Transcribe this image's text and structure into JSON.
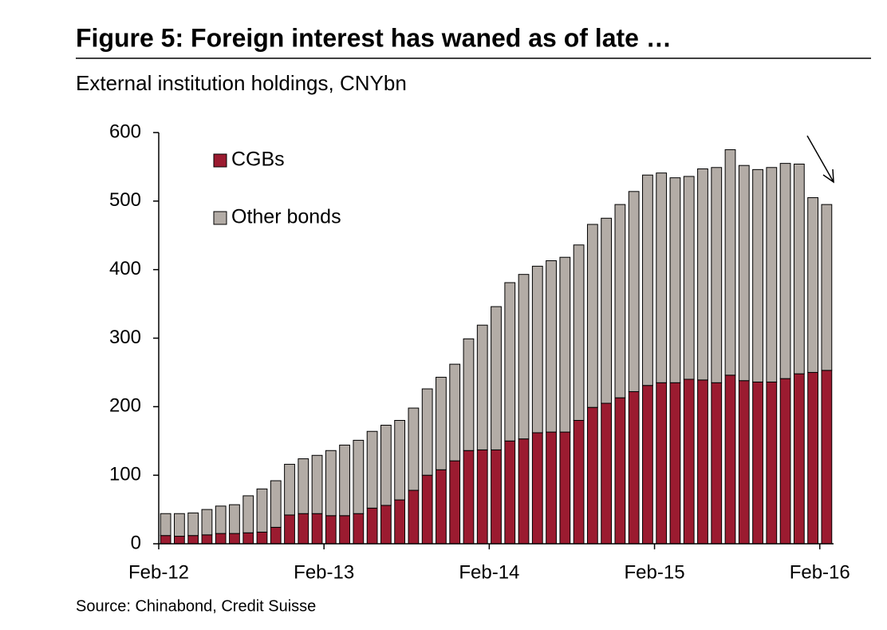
{
  "chart_data": {
    "type": "stacked_bar",
    "title": "Figure 5: Foreign interest has waned as of late …",
    "subtitle": "External institution holdings, CNYbn",
    "source": "Source: Chinabond, Credit Suisse",
    "categories": [
      "Feb-12",
      null,
      null,
      null,
      null,
      null,
      null,
      null,
      null,
      null,
      null,
      null,
      "Feb-13",
      null,
      null,
      null,
      null,
      null,
      null,
      null,
      null,
      null,
      null,
      null,
      "Feb-14",
      null,
      null,
      null,
      null,
      null,
      null,
      null,
      null,
      null,
      null,
      null,
      "Feb-15",
      null,
      null,
      null,
      null,
      null,
      null,
      null,
      null,
      null,
      null,
      null,
      "Feb-16"
    ],
    "series": [
      {
        "name": "CGBs",
        "color": "#9b1b30",
        "values": [
          12,
          11,
          12,
          13,
          15,
          15,
          16,
          17,
          24,
          42,
          44,
          44,
          41,
          41,
          44,
          52,
          56,
          64,
          78,
          100,
          108,
          121,
          136,
          137,
          137,
          150,
          153,
          162,
          163,
          163,
          180,
          199,
          205,
          213,
          222,
          231,
          235,
          235,
          240,
          239,
          235,
          246,
          238,
          236,
          236,
          241,
          248,
          250,
          253
        ]
      },
      {
        "name": "Other bonds",
        "color": "#b3aca6",
        "values": [
          32,
          33,
          33,
          37,
          40,
          42,
          54,
          63,
          68,
          74,
          80,
          85,
          95,
          103,
          107,
          112,
          117,
          116,
          120,
          126,
          135,
          141,
          163,
          182,
          209,
          231,
          240,
          243,
          250,
          255,
          256,
          267,
          270,
          282,
          292,
          307,
          306,
          299,
          296,
          308,
          314,
          329,
          314,
          310,
          313,
          314,
          306,
          255,
          242
        ]
      }
    ],
    "ylim": [
      0,
      600
    ],
    "yticks": [
      0,
      100,
      200,
      300,
      400,
      500,
      600
    ],
    "grid": false,
    "legend": "top-left"
  }
}
